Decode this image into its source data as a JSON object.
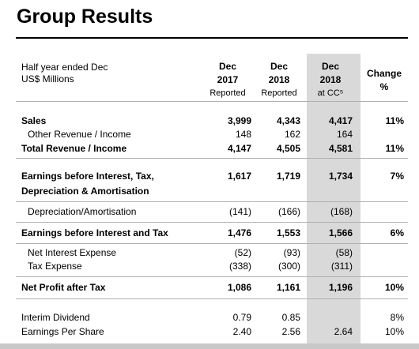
{
  "header": {
    "title": "Group Results"
  },
  "table": {
    "label_header": [
      "Half year ended Dec",
      "US$ Millions"
    ],
    "columns": [
      [
        "Dec",
        "2017",
        "Reported"
      ],
      [
        "Dec",
        "2018",
        "Reported"
      ],
      [
        "Dec",
        "2018",
        "at CC⁵"
      ],
      [
        "Change",
        "%"
      ]
    ],
    "rows": [
      {
        "label": [
          "Sales"
        ],
        "bold": true,
        "indent": false,
        "cells": [
          "3,999",
          "4,343",
          "4,417",
          "11%"
        ]
      },
      {
        "label": [
          "Other Revenue / Income"
        ],
        "bold": false,
        "indent": true,
        "cells": [
          "148",
          "162",
          "164",
          null
        ]
      },
      {
        "label": [
          "Total Revenue / Income"
        ],
        "bold": true,
        "indent": false,
        "cells": [
          "4,147",
          "4,505",
          "4,581",
          "11%"
        ]
      },
      {
        "label": [
          "Earnings before Interest, Tax,",
          "Depreciation & Amortisation"
        ],
        "bold": true,
        "indent": false,
        "cells": [
          "1,617",
          "1,719",
          "1,734",
          "7%"
        ]
      },
      {
        "label": [
          "Depreciation/Amortisation"
        ],
        "bold": false,
        "indent": true,
        "cells": [
          "(141)",
          "(166)",
          "(168)",
          null
        ]
      },
      {
        "label": [
          "Earnings before Interest and Tax"
        ],
        "bold": true,
        "indent": false,
        "cells": [
          "1,476",
          "1,553",
          "1,566",
          "6%"
        ]
      },
      {
        "label": [
          "Net Interest Expense"
        ],
        "bold": false,
        "indent": true,
        "cells": [
          "(52)",
          "(93)",
          "(58)",
          null
        ]
      },
      {
        "label": [
          "Tax Expense"
        ],
        "bold": false,
        "indent": true,
        "cells": [
          "(338)",
          "(300)",
          "(311)",
          null
        ]
      },
      {
        "label": [
          "Net Profit after Tax"
        ],
        "bold": true,
        "indent": false,
        "cells": [
          "1,086",
          "1,161",
          "1,196",
          "10%"
        ]
      },
      {
        "label": [
          "Interim Dividend"
        ],
        "bold": false,
        "indent": false,
        "cells": [
          "0.79",
          "0.85",
          null,
          "8%"
        ]
      },
      {
        "label": [
          "Earnings Per Share"
        ],
        "bold": false,
        "indent": false,
        "cells": [
          "2.40",
          "2.56",
          "2.64",
          "10%"
        ]
      }
    ]
  }
}
